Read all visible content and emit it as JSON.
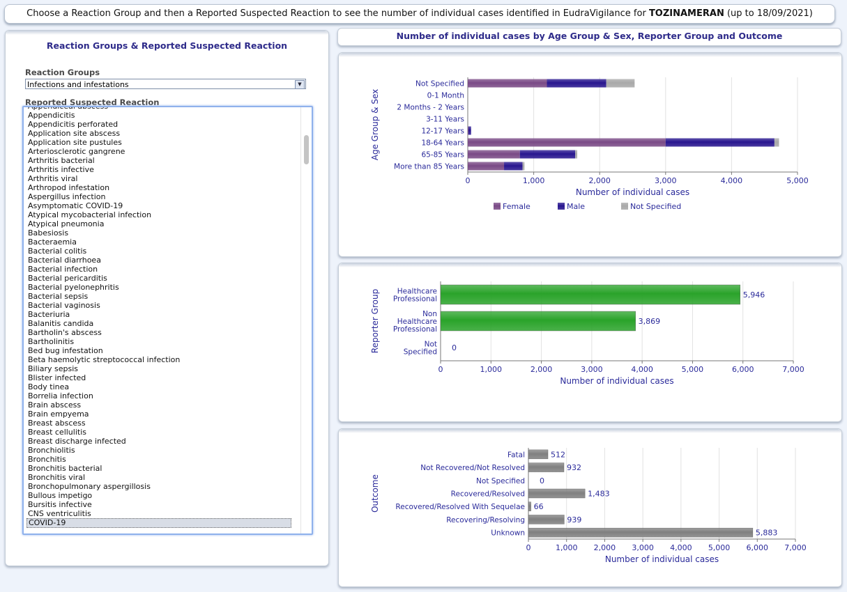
{
  "banner": {
    "prefix": "Choose a Reaction Group and then a Reported Suspected Reaction to see the number of individual cases identified in EudraVigilance for ",
    "product": "TOZINAMERAN",
    "suffix": " (up to 18/09/2021)"
  },
  "left_panel": {
    "title": "Reaction Groups & Reported Suspected Reaction",
    "groups_label": "Reaction Groups",
    "groups_value": "Infections and infestations",
    "reaction_label": "Reported Suspected Reaction",
    "reactions": [
      "Appendiceal abscess",
      "Appendicitis",
      "Appendicitis perforated",
      "Application site abscess",
      "Application site pustules",
      "Arteriosclerotic gangrene",
      "Arthritis bacterial",
      "Arthritis infective",
      "Arthritis viral",
      "Arthropod infestation",
      "Aspergillus infection",
      "Asymptomatic COVID-19",
      "Atypical mycobacterial infection",
      "Atypical pneumonia",
      "Babesiosis",
      "Bacteraemia",
      "Bacterial colitis",
      "Bacterial diarrhoea",
      "Bacterial infection",
      "Bacterial pericarditis",
      "Bacterial pyelonephritis",
      "Bacterial sepsis",
      "Bacterial vaginosis",
      "Bacteriuria",
      "Balanitis candida",
      "Bartholin's abscess",
      "Bartholinitis",
      "Bed bug infestation",
      "Beta haemolytic streptococcal infection",
      "Biliary sepsis",
      "Blister infected",
      "Body tinea",
      "Borrelia infection",
      "Brain abscess",
      "Brain empyema",
      "Breast abscess",
      "Breast cellulitis",
      "Breast discharge infected",
      "Bronchiolitis",
      "Bronchitis",
      "Bronchitis bacterial",
      "Bronchitis viral",
      "Bronchopulmonary aspergillosis",
      "Bullous impetigo",
      "Bursitis infective",
      "CNS ventriculitis",
      "COVID-19"
    ],
    "selected_reaction": "COVID-19"
  },
  "right_panel": {
    "title": "Number of individual cases by Age Group & Sex, Reporter Group and Outcome"
  },
  "colors": {
    "female": "#7a4a86",
    "male": "#28168f",
    "not_specified": "#a9a9a9",
    "reporter": "#2aa32a",
    "outcome": "#808080",
    "axis_text": "#2a2a9a"
  },
  "chart_data": [
    {
      "type": "bar",
      "orientation": "horizontal",
      "stacked": true,
      "ylabel": "Age Group & Sex",
      "xlabel": "Number of individual cases",
      "categories": [
        "Not Specified",
        "0-1 Month",
        "2 Months - 2 Years",
        "3-11 Years",
        "12-17 Years",
        "18-64 Years",
        "65-85 Years",
        "More than 85 Years"
      ],
      "series": [
        {
          "name": "Female",
          "values": [
            1200,
            0,
            0,
            0,
            10,
            3000,
            790,
            550
          ]
        },
        {
          "name": "Male",
          "values": [
            900,
            0,
            0,
            0,
            40,
            1650,
            840,
            280
          ]
        },
        {
          "name": "Not Specified",
          "values": [
            430,
            0,
            0,
            0,
            0,
            70,
            30,
            30
          ]
        }
      ],
      "xlim": [
        0,
        5000
      ],
      "xticks": [
        "0",
        "1,000",
        "2,000",
        "3,000",
        "4,000",
        "5,000"
      ],
      "legend": "bottom"
    },
    {
      "type": "bar",
      "orientation": "horizontal",
      "ylabel": "Reporter Group",
      "xlabel": "Number of individual cases",
      "categories": [
        "Healthcare Professional",
        "Non Healthcare Professional",
        "Not Specified"
      ],
      "values": [
        5946,
        3869,
        0
      ],
      "value_labels": [
        "5,946",
        "3,869",
        "0"
      ],
      "xlim": [
        0,
        7000
      ],
      "xticks": [
        "0",
        "1,000",
        "2,000",
        "3,000",
        "4,000",
        "5,000",
        "6,000",
        "7,000"
      ]
    },
    {
      "type": "bar",
      "orientation": "horizontal",
      "ylabel": "Outcome",
      "xlabel": "Number of individual cases",
      "categories": [
        "Fatal",
        "Not Recovered/Not Resolved",
        "Not Specified",
        "Recovered/Resolved",
        "Recovered/Resolved With Sequelae",
        "Recovering/Resolving",
        "Unknown"
      ],
      "values": [
        512,
        932,
        0,
        1483,
        66,
        939,
        5883
      ],
      "value_labels": [
        "512",
        "932",
        "0",
        "1,483",
        "66",
        "939",
        "5,883"
      ],
      "xlim": [
        0,
        7000
      ],
      "xticks": [
        "0",
        "1,000",
        "2,000",
        "3,000",
        "4,000",
        "5,000",
        "6,000",
        "7,000"
      ]
    }
  ]
}
